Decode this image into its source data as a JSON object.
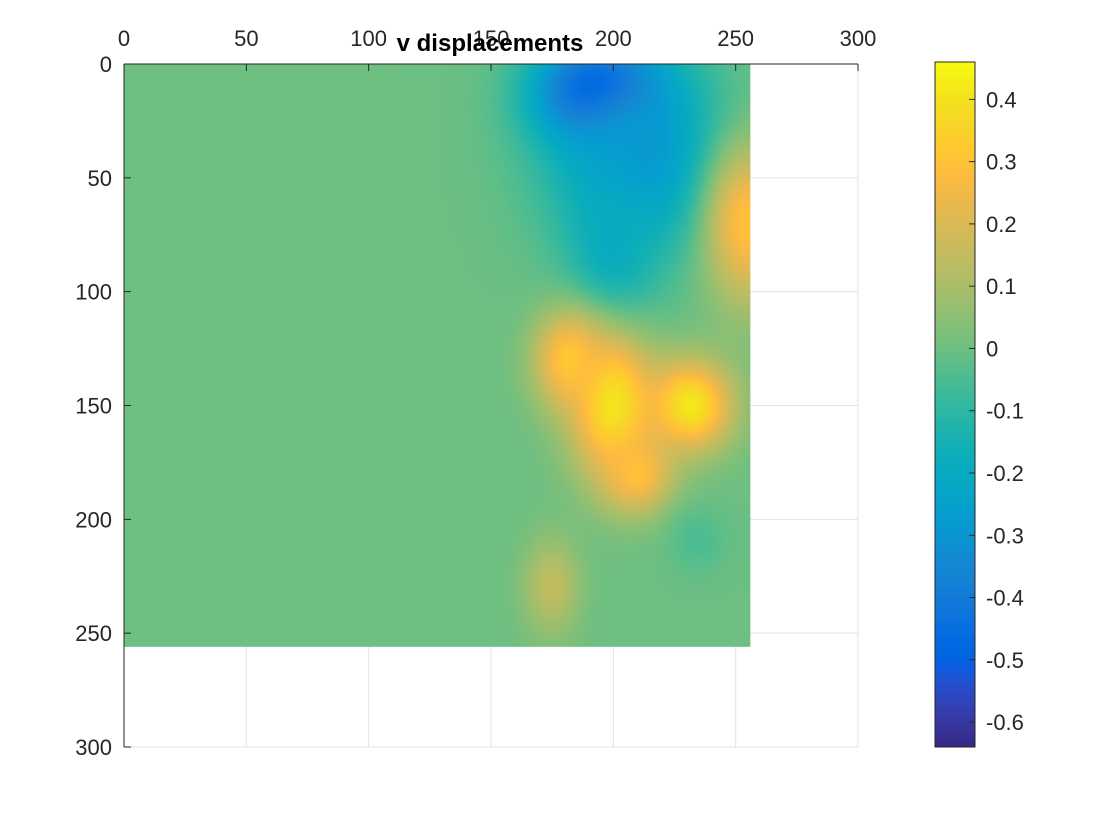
{
  "chart_data": {
    "type": "heatmap",
    "title": "v displacements",
    "xlabel": "",
    "ylabel": "",
    "xlim": [
      0,
      300
    ],
    "ylim": [
      0,
      300
    ],
    "y_reversed": true,
    "x_axis_location": "top",
    "grid": true,
    "x_ticks": [
      0,
      50,
      100,
      150,
      200,
      250,
      300
    ],
    "y_ticks": [
      0,
      50,
      100,
      150,
      200,
      250,
      300
    ],
    "data_extent": {
      "x": [
        0,
        256
      ],
      "y": [
        0,
        256
      ]
    },
    "background_value": 0.0,
    "features": [
      {
        "x": 195,
        "y": 12,
        "sx": 18,
        "sy": 16,
        "value": -0.64
      },
      {
        "x": 210,
        "y": 40,
        "sx": 25,
        "sy": 30,
        "value": -0.3
      },
      {
        "x": 200,
        "y": 80,
        "sx": 12,
        "sy": 25,
        "value": -0.2
      },
      {
        "x": 255,
        "y": 70,
        "sx": 12,
        "sy": 25,
        "value": 0.3
      },
      {
        "x": 200,
        "y": 150,
        "sx": 12,
        "sy": 22,
        "value": 0.42
      },
      {
        "x": 232,
        "y": 150,
        "sx": 12,
        "sy": 14,
        "value": 0.42
      },
      {
        "x": 182,
        "y": 130,
        "sx": 10,
        "sy": 15,
        "value": 0.32
      },
      {
        "x": 210,
        "y": 180,
        "sx": 10,
        "sy": 12,
        "value": 0.3
      },
      {
        "x": 175,
        "y": 230,
        "sx": 8,
        "sy": 15,
        "value": 0.15
      },
      {
        "x": 235,
        "y": 210,
        "sx": 8,
        "sy": 10,
        "value": -0.05
      }
    ],
    "colorbar": {
      "colormap": "parula",
      "range": [
        -0.64,
        0.46
      ],
      "ticks": [
        "0.4",
        "0.3",
        "0.2",
        "0.1",
        "0",
        "-0.1",
        "-0.2",
        "-0.3",
        "-0.4",
        "-0.5",
        "-0.6"
      ],
      "tick_values": [
        0.4,
        0.3,
        0.2,
        0.1,
        0,
        -0.1,
        -0.2,
        -0.3,
        -0.4,
        -0.5,
        -0.6
      ]
    }
  }
}
